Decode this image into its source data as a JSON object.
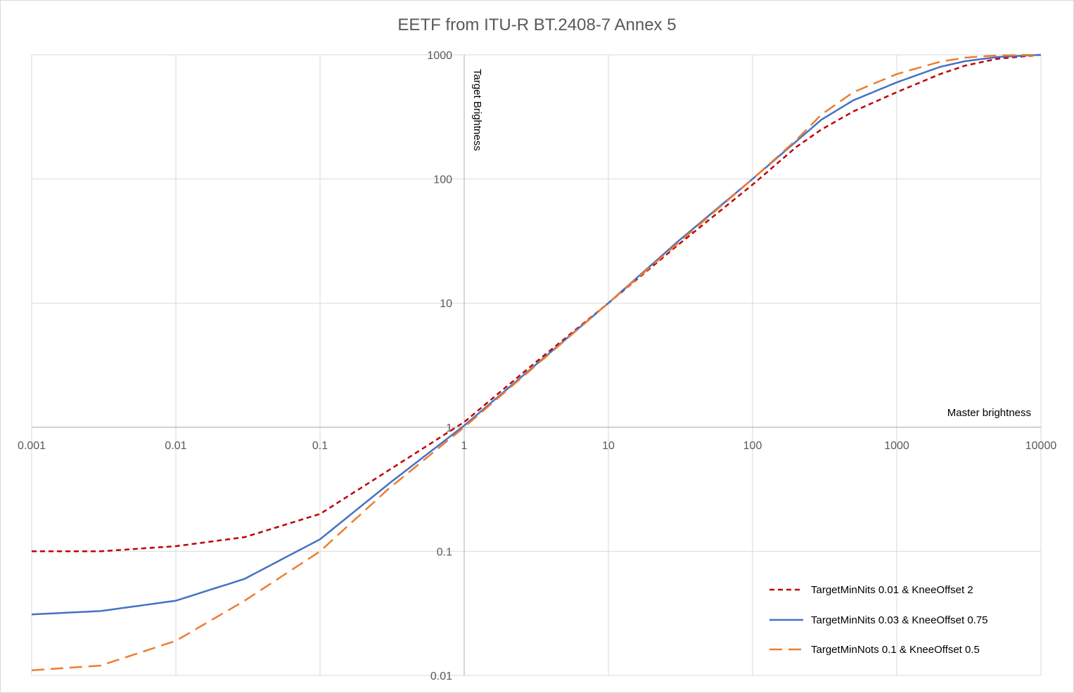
{
  "chart_data": {
    "type": "line",
    "title": "EETF from ITU-R BT.2408-7 Annex 5",
    "xlabel": "Master brightness",
    "ylabel": "Target Brightness",
    "xscale": "log",
    "yscale": "log",
    "xlim": [
      0.001,
      10000
    ],
    "ylim": [
      0.01,
      1000
    ],
    "x_ticks": [
      "0.001",
      "0.01",
      "0.1",
      "1",
      "10",
      "100",
      "1000",
      "10000"
    ],
    "y_ticks": [
      "1000",
      "100",
      "10",
      "1",
      "0.1",
      "0.01"
    ],
    "grid": true,
    "legend_position": "bottom-right",
    "series": [
      {
        "name": "TargetMinNits 0.01 & KneeOffset 2",
        "color": "#C00000",
        "style": "short-dash",
        "points": [
          [
            0.001,
            0.1
          ],
          [
            0.003,
            0.1
          ],
          [
            0.01,
            0.11
          ],
          [
            0.03,
            0.13
          ],
          [
            0.1,
            0.2
          ],
          [
            0.3,
            0.45
          ],
          [
            1,
            1.1
          ],
          [
            3,
            3.2
          ],
          [
            10,
            10
          ],
          [
            30,
            29
          ],
          [
            100,
            90
          ],
          [
            200,
            180
          ],
          [
            300,
            250
          ],
          [
            500,
            350
          ],
          [
            1000,
            500
          ],
          [
            2000,
            700
          ],
          [
            3000,
            820
          ],
          [
            5000,
            930
          ],
          [
            10000,
            1000
          ]
        ]
      },
      {
        "name": "TargetMinNits 0.03 & KneeOffset 0.75",
        "color": "#4472C4",
        "style": "solid",
        "points": [
          [
            0.001,
            0.031
          ],
          [
            0.003,
            0.033
          ],
          [
            0.01,
            0.04
          ],
          [
            0.03,
            0.06
          ],
          [
            0.1,
            0.125
          ],
          [
            0.3,
            0.35
          ],
          [
            1,
            1.03
          ],
          [
            3,
            3.05
          ],
          [
            10,
            10
          ],
          [
            30,
            31
          ],
          [
            100,
            100
          ],
          [
            200,
            200
          ],
          [
            300,
            300
          ],
          [
            500,
            430
          ],
          [
            1000,
            600
          ],
          [
            2000,
            800
          ],
          [
            3000,
            890
          ],
          [
            5000,
            960
          ],
          [
            10000,
            1000
          ]
        ]
      },
      {
        "name": "TargetMinNots 0.1 & KneeOffset 0.5",
        "color": "#ED7D31",
        "style": "long-dash",
        "points": [
          [
            0.001,
            0.011
          ],
          [
            0.003,
            0.012
          ],
          [
            0.01,
            0.019
          ],
          [
            0.03,
            0.04
          ],
          [
            0.1,
            0.1
          ],
          [
            0.3,
            0.32
          ],
          [
            1,
            1
          ],
          [
            3,
            3
          ],
          [
            10,
            10
          ],
          [
            30,
            30
          ],
          [
            100,
            100
          ],
          [
            200,
            205
          ],
          [
            300,
            330
          ],
          [
            500,
            500
          ],
          [
            1000,
            700
          ],
          [
            2000,
            880
          ],
          [
            3000,
            950
          ],
          [
            5000,
            990
          ],
          [
            10000,
            1000
          ]
        ]
      }
    ]
  }
}
